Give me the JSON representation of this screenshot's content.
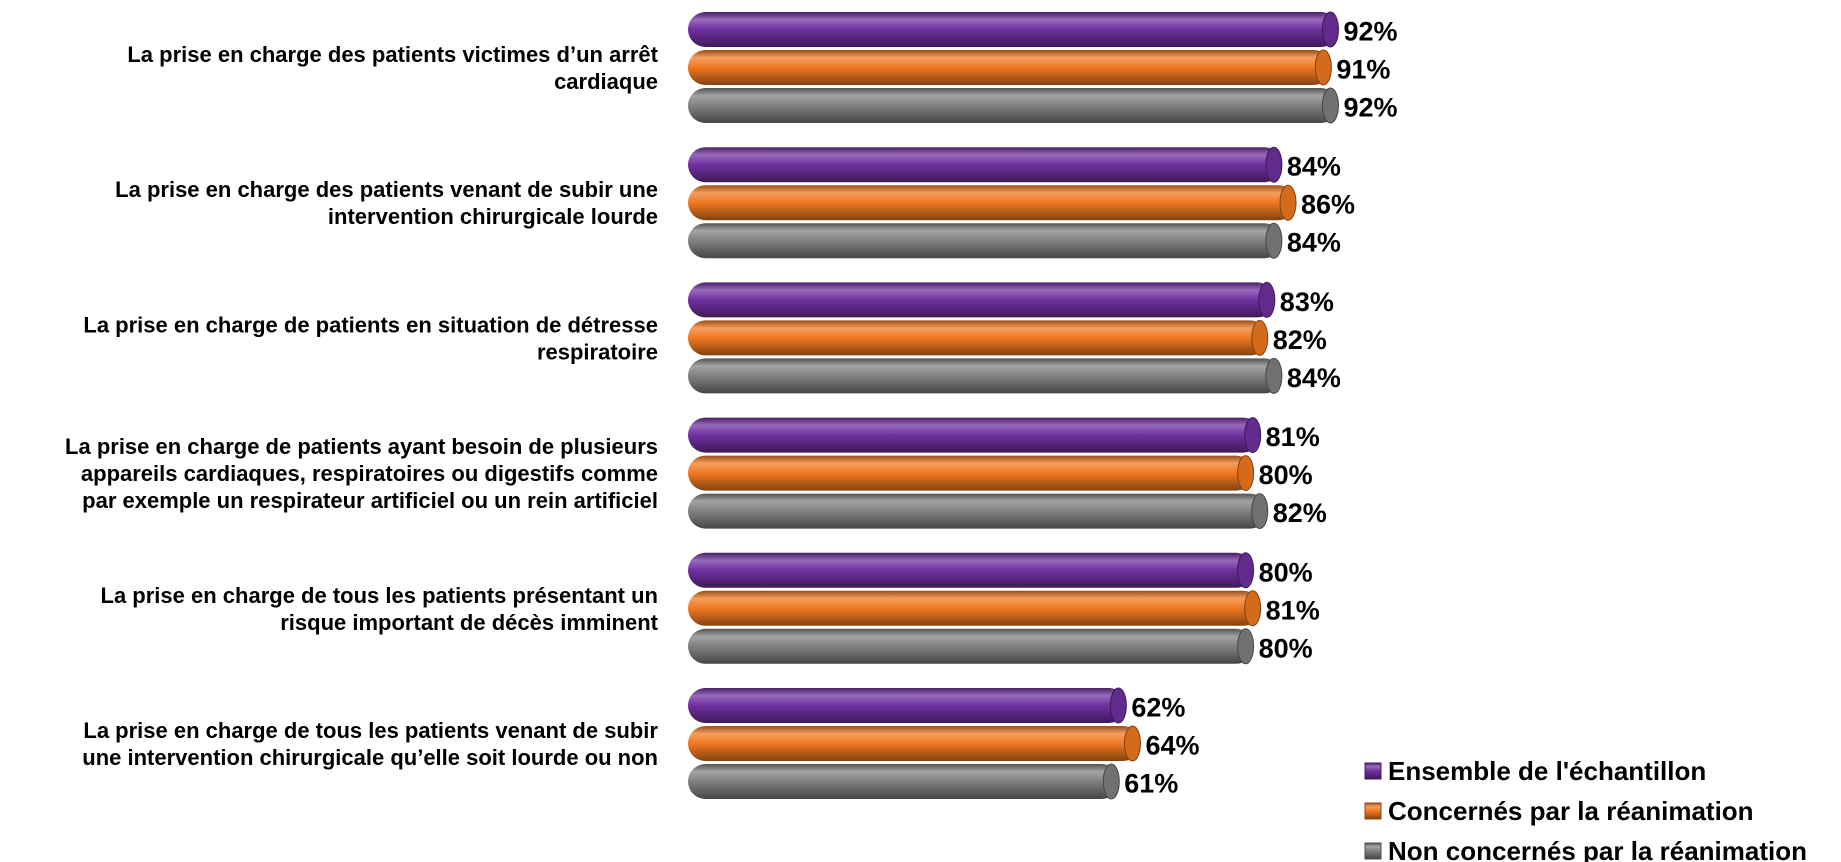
{
  "chart_data": {
    "type": "bar",
    "orientation": "horizontal",
    "style": "3d-cylinder",
    "value_format": "percent",
    "xlim": [
      0,
      100
    ],
    "grid": false,
    "legend_position": "bottom-right",
    "categories": [
      [
        "La prise en charge des patients victimes d’un arrêt",
        "cardiaque"
      ],
      [
        "La prise en charge des patients venant de subir une",
        "intervention chirurgicale lourde"
      ],
      [
        "La prise en charge de patients en situation de détresse",
        "respiratoire"
      ],
      [
        "La prise en charge de patients ayant besoin de plusieurs",
        "appareils cardiaques, respiratoires ou digestifs comme",
        "par exemple un respirateur artificiel ou un rein artificiel"
      ],
      [
        "La prise en charge de tous les patients présentant un",
        "risque important de décès imminent"
      ],
      [
        "La prise en charge de tous les patients venant de subir",
        "une intervention chirurgicale qu’elle soit lourde ou non"
      ]
    ],
    "series": [
      {
        "name": "Ensemble de l'échantillon",
        "color": "#7030A0",
        "values": [
          92,
          84,
          83,
          81,
          80,
          62
        ]
      },
      {
        "name": "Concernés par la réanimation",
        "color": "#F07820",
        "values": [
          91,
          86,
          82,
          80,
          81,
          64
        ]
      },
      {
        "name": "Non concernés par la réanimation",
        "color": "#808080",
        "values": [
          92,
          84,
          84,
          82,
          80,
          61
        ]
      }
    ]
  }
}
